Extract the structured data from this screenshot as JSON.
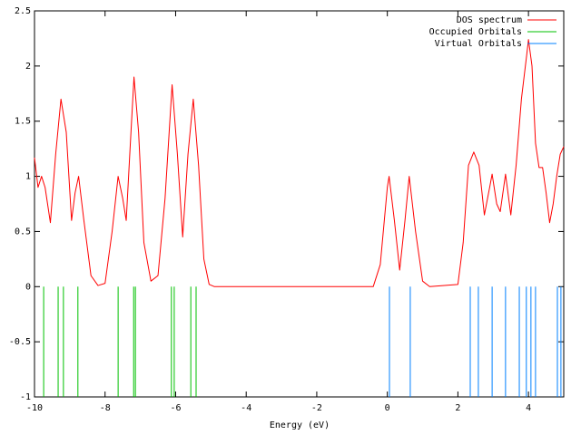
{
  "chart_data": {
    "type": "line",
    "xlabel": "Energy (eV)",
    "xlim": [
      -10,
      5
    ],
    "xticks": [
      -10,
      -8,
      -6,
      -4,
      -2,
      0,
      2,
      4
    ],
    "ylim": [
      -1,
      2.5
    ],
    "yticks": [
      -1,
      -0.5,
      0,
      0.5,
      1,
      1.5,
      2,
      2.5
    ],
    "grid": false,
    "legend": "top-right",
    "series": [
      {
        "name": "DOS spectrum",
        "color": "#ff0000",
        "style": "line",
        "x": [
          -10,
          -9.9,
          -9.8,
          -9.7,
          -9.55,
          -9.4,
          -9.25,
          -9.1,
          -8.95,
          -8.85,
          -8.75,
          -8.6,
          -8.4,
          -8.2,
          -8.0,
          -7.8,
          -7.63,
          -7.5,
          -7.4,
          -7.3,
          -7.18,
          -7.05,
          -6.9,
          -6.7,
          -6.5,
          -6.3,
          -6.1,
          -5.95,
          -5.8,
          -5.65,
          -5.5,
          -5.35,
          -5.2,
          -5.05,
          -4.9,
          -0.4,
          -0.2,
          0.0,
          0.05,
          0.2,
          0.35,
          0.5,
          0.62,
          0.8,
          1.0,
          1.2,
          2.0,
          2.15,
          2.3,
          2.45,
          2.6,
          2.75,
          2.9,
          2.97,
          3.1,
          3.2,
          3.35,
          3.5,
          3.65,
          3.8,
          3.95,
          4.0,
          4.1,
          4.2,
          4.3,
          4.4,
          4.5,
          4.6,
          4.7,
          4.8,
          4.9,
          5.0
        ],
        "values": [
          1.17,
          0.9,
          1.0,
          0.9,
          0.58,
          1.2,
          1.7,
          1.4,
          0.6,
          0.85,
          1.0,
          0.6,
          0.1,
          0.01,
          0.03,
          0.5,
          1.0,
          0.8,
          0.6,
          1.2,
          1.9,
          1.4,
          0.4,
          0.05,
          0.1,
          0.8,
          1.83,
          1.2,
          0.45,
          1.2,
          1.7,
          1.1,
          0.25,
          0.02,
          0,
          0,
          0.2,
          0.9,
          1.0,
          0.6,
          0.15,
          0.6,
          1.0,
          0.5,
          0.05,
          0,
          0.02,
          0.4,
          1.1,
          1.22,
          1.1,
          0.65,
          0.9,
          1.02,
          0.75,
          0.68,
          1.02,
          0.65,
          1.1,
          1.7,
          2.1,
          2.24,
          2.0,
          1.3,
          1.08,
          1.08,
          0.85,
          0.58,
          0.75,
          1.0,
          1.2,
          1.27
        ]
      },
      {
        "name": "Occupied Orbitals",
        "color": "#00c000",
        "style": "impulses",
        "x": [
          -9.74,
          -9.33,
          -9.18,
          -8.77,
          -7.63,
          -7.19,
          -7.14,
          -6.12,
          -6.04,
          -5.57,
          -5.42
        ],
        "values": [
          -1,
          -1,
          -1,
          -1,
          -1,
          -1,
          -1,
          -1,
          -1,
          -1,
          -1
        ]
      },
      {
        "name": "Virtual Orbitals",
        "color": "#0080ff",
        "style": "impulses",
        "x": [
          0.06,
          0.65,
          2.35,
          2.58,
          2.97,
          3.35,
          3.74,
          3.94,
          4.07,
          4.2,
          4.82,
          4.92
        ],
        "values": [
          -1,
          -1,
          -1,
          -1,
          -1,
          -1,
          -1,
          -1,
          -1,
          -1,
          -1,
          -1
        ]
      }
    ]
  }
}
